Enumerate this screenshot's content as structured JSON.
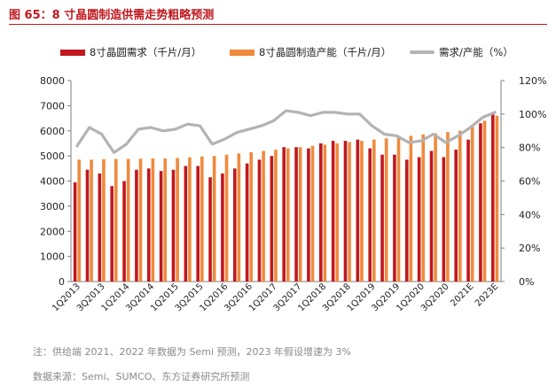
{
  "figure": {
    "title": "图 65：8 寸晶圆制造供需走势粗略预测",
    "footnote": "注：供给端 2021、2022 年数据为 Semi 预测，2023 年假设增速为 3%",
    "source": "数据来源：Semi、SUMCO、东方证券研究所预测"
  },
  "colors": {
    "title": "#c0181e",
    "demand": "#c0181e",
    "capacity": "#f08a3c",
    "ratio": "#b3b3b3"
  },
  "chart_data": {
    "type": "bar",
    "categories": [
      "1Q2013",
      "2Q2013",
      "3Q2013",
      "4Q2013",
      "1Q2014",
      "2Q2014",
      "3Q2014",
      "4Q2014",
      "1Q2015",
      "2Q2015",
      "3Q2015",
      "4Q2015",
      "1Q2016",
      "2Q2016",
      "3Q2016",
      "4Q2016",
      "1Q2017",
      "2Q2017",
      "3Q2017",
      "4Q2017",
      "1Q2018",
      "2Q2018",
      "3Q2018",
      "4Q2018",
      "1Q2019",
      "2Q2019",
      "3Q2019",
      "4Q2019",
      "1Q2020",
      "2Q2020",
      "3Q2020",
      "4Q2020",
      "2021E",
      "2022E",
      "2023E"
    ],
    "tick_labels": [
      "1Q2013",
      "",
      "3Q2013",
      "",
      "1Q2014",
      "",
      "3Q2014",
      "",
      "1Q2015",
      "",
      "3Q2015",
      "",
      "1Q2016",
      "",
      "3Q2016",
      "",
      "1Q2017",
      "",
      "3Q2017",
      "",
      "1Q2018",
      "",
      "3Q2018",
      "",
      "1Q2019",
      "",
      "3Q2019",
      "",
      "1Q2020",
      "",
      "3Q2020",
      "",
      "2021E",
      "",
      "2023E"
    ],
    "series": [
      {
        "name": "8寸晶圆需求（千片/月）",
        "type": "bar",
        "axis": "left",
        "values": [
          3950,
          4450,
          4300,
          3800,
          4000,
          4450,
          4500,
          4400,
          4450,
          4600,
          4600,
          4150,
          4300,
          4500,
          4700,
          4850,
          5000,
          5350,
          5350,
          5300,
          5500,
          5600,
          5600,
          5650,
          5300,
          5050,
          5050,
          4850,
          4950,
          5200,
          4950,
          5250,
          5650,
          6300,
          6650
        ]
      },
      {
        "name": "8寸晶圆制造产能（千片/月）",
        "type": "bar",
        "axis": "left",
        "values": [
          4850,
          4850,
          4870,
          4880,
          4880,
          4890,
          4900,
          4900,
          4920,
          4950,
          4980,
          5000,
          5050,
          5100,
          5150,
          5200,
          5250,
          5300,
          5350,
          5400,
          5450,
          5500,
          5550,
          5600,
          5650,
          5700,
          5750,
          5800,
          5850,
          5900,
          5950,
          6000,
          6150,
          6400,
          6600
        ]
      },
      {
        "name": "需求/产能（%）",
        "type": "line",
        "axis": "right",
        "values": [
          81,
          92,
          88,
          77,
          82,
          91,
          92,
          90,
          91,
          94,
          93,
          82,
          85,
          89,
          91,
          93,
          96,
          102,
          101,
          99,
          101,
          101,
          100,
          100,
          93,
          88,
          87,
          83,
          84,
          88,
          83,
          87,
          92,
          98,
          101
        ]
      }
    ],
    "y_left": {
      "min": 0,
      "max": 8000,
      "ticks": [
        "0",
        "1000",
        "2000",
        "3000",
        "4000",
        "5000",
        "6000",
        "7000",
        "8000"
      ]
    },
    "y_right": {
      "min": 0,
      "max": 120,
      "ticks": [
        "0%",
        "20%",
        "40%",
        "60%",
        "80%",
        "100%",
        "120%"
      ]
    },
    "grid": false,
    "legend": "top"
  }
}
